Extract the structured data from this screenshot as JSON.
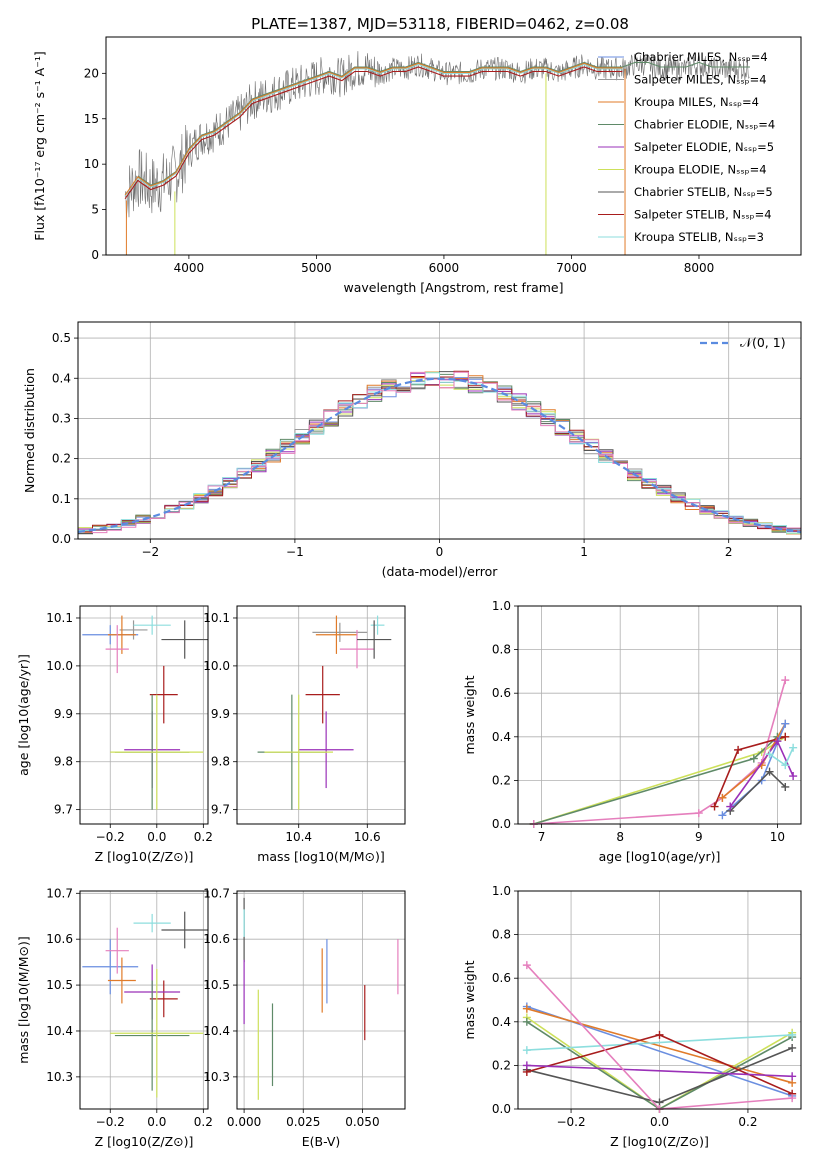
{
  "title": "PLATE=1387, MJD=53118, FIBERID=0462, z=0.08",
  "series_colors": {
    "chabrier_miles": "#6a8ee0",
    "salpeter_miles": "#999999",
    "kroupa_miles": "#e07b2a",
    "chabrier_elodie": "#5f8a68",
    "salpeter_elodie": "#9a30b8",
    "kroupa_elodie": "#cde05a",
    "chabrier_stelib": "#555555",
    "salpeter_stelib": "#a81d1d",
    "kroupa_stelib": "#8ddede",
    "pink": "#e57fbd"
  },
  "chart_data": [
    {
      "id": "spectrum",
      "type": "line",
      "xlabel": "wavelength [Angstrom, rest frame]",
      "ylabel": "Flux [fλ10⁻¹⁷ erg cm⁻² s⁻¹ A⁻¹]",
      "xlim": [
        3350,
        8800
      ],
      "ylim": [
        0,
        24
      ],
      "xticks": [
        4000,
        5000,
        6000,
        7000,
        8000
      ],
      "yticks": [
        0,
        5,
        10,
        15,
        20
      ],
      "legend_position": "top-right",
      "legend": [
        "Chabrier MILES, N_SSP=4",
        "Salpeter MILES, N_SSP=4",
        "Kroupa MILES, N_SSP=4",
        "Chabrier ELODIE, N_SSP=4",
        "Salpeter ELODIE, N_SSP=5",
        "Kroupa ELODIE, N_SSP=4",
        "Chabrier STELIB, N_SSP=5",
        "Salpeter STELIB, N_SSP=4",
        "Kroupa STELIB, N_SSP=3"
      ],
      "data_curve": {
        "x": [
          3500,
          3600,
          3700,
          3800,
          3900,
          4000,
          4100,
          4200,
          4300,
          4400,
          4500,
          4600,
          4700,
          4800,
          4900,
          5000,
          5100,
          5200,
          5300,
          5400,
          5500,
          5600,
          5700,
          5800,
          5900,
          6000,
          6100,
          6200,
          6300,
          6400,
          6500,
          6600,
          6700,
          6800,
          6900,
          7000,
          7100,
          7200,
          7300,
          7400,
          7500,
          7600,
          7700,
          7800,
          7900,
          8000,
          8100,
          8200,
          8300,
          8400
        ],
        "y": [
          6.5,
          8.5,
          7.5,
          8.0,
          9.0,
          11.5,
          13.0,
          13.5,
          14.5,
          15.5,
          17.0,
          17.5,
          18.0,
          18.5,
          19.0,
          19.5,
          20.0,
          19.5,
          20.5,
          20.5,
          20.0,
          20.5,
          20.5,
          21.0,
          20.5,
          20.0,
          20.0,
          20.0,
          20.5,
          20.5,
          20.5,
          20.0,
          20.5,
          20.5,
          20.0,
          20.5,
          21.0,
          20.5,
          20.5,
          20.5,
          21.0,
          21.0,
          20.5,
          20.5,
          20.5,
          21.0,
          20.5,
          20.5,
          20.5,
          20.5
        ]
      }
    },
    {
      "id": "residuals",
      "type": "histogram",
      "xlabel": "(data-model)/error",
      "ylabel": "Normed distribution",
      "xlim": [
        -2.5,
        2.5
      ],
      "ylim": [
        0,
        0.54
      ],
      "xticks": [
        -2,
        -1,
        0,
        1,
        2
      ],
      "yticks": [
        0.0,
        0.1,
        0.2,
        0.3,
        0.4,
        0.5
      ],
      "legend": [
        "N(0,1)"
      ],
      "legend_position": "top-right",
      "gaussian": {
        "mean": 0,
        "sigma": 1
      },
      "bin_centers": [
        -2.4,
        -2.2,
        -2.0,
        -1.8,
        -1.6,
        -1.4,
        -1.2,
        -1.0,
        -0.8,
        -0.6,
        -0.4,
        -0.2,
        0.0,
        0.2,
        0.4,
        0.6,
        0.8,
        1.0,
        1.2,
        1.4,
        1.6,
        1.8,
        2.0,
        2.2,
        2.4
      ],
      "bin_values": [
        0.025,
        0.04,
        0.06,
        0.075,
        0.1,
        0.14,
        0.18,
        0.23,
        0.29,
        0.34,
        0.4,
        0.45,
        0.43,
        0.41,
        0.39,
        0.35,
        0.3,
        0.24,
        0.18,
        0.14,
        0.11,
        0.08,
        0.06,
        0.04,
        0.03
      ]
    },
    {
      "id": "age_vs_Z",
      "type": "errorbar",
      "xlabel": "Z [log10(Z/Z⊙)]",
      "ylabel": "age [log10(age/yr)]",
      "xlim": [
        -0.33,
        0.22
      ],
      "ylim": [
        9.67,
        10.125
      ],
      "xticks": [
        -0.2,
        0.0,
        0.2
      ],
      "yticks": [
        9.7,
        9.8,
        9.9,
        10.0,
        10.1
      ],
      "points": [
        {
          "series": "chabrier_miles",
          "x": -0.2,
          "y": 10.065,
          "xerr": 0.12,
          "yerr": 0.02
        },
        {
          "series": "salpeter_miles",
          "x": -0.1,
          "y": 10.075,
          "xerr": 0.06,
          "yerr": 0.02
        },
        {
          "series": "kroupa_miles",
          "x": -0.15,
          "y": 10.065,
          "xerr": 0.06,
          "yerr": 0.04
        },
        {
          "series": "pink",
          "x": -0.17,
          "y": 10.035,
          "xerr": 0.05,
          "yerr": 0.05
        },
        {
          "series": "kroupa_stelib",
          "x": -0.02,
          "y": 10.085,
          "xerr": 0.08,
          "yerr": 0.02
        },
        {
          "series": "chabrier_stelib",
          "x": 0.12,
          "y": 10.055,
          "xerr": 0.1,
          "yerr": 0.04
        },
        {
          "series": "salpeter_stelib",
          "x": 0.03,
          "y": 9.94,
          "xerr": 0.06,
          "yerr": 0.06
        },
        {
          "series": "salpeter_elodie",
          "x": -0.02,
          "y": 9.825,
          "xerr": 0.12,
          "yerr": 0.08
        },
        {
          "series": "chabrier_elodie",
          "x": -0.02,
          "y": 9.82,
          "xerr": 0.16,
          "yerr": 0.12
        },
        {
          "series": "kroupa_elodie",
          "x": 0.0,
          "y": 9.82,
          "xerr": 0.2,
          "yerr": 0.12
        }
      ]
    },
    {
      "id": "age_vs_mass",
      "type": "errorbar",
      "xlabel": "mass [log10(M/M⊙)]",
      "ylabel": "",
      "xlim": [
        10.22,
        10.71
      ],
      "ylim": [
        9.67,
        10.125
      ],
      "xticks": [
        10.4,
        10.6
      ],
      "yticks": [
        9.7,
        9.8,
        9.9,
        10.0,
        10.1
      ],
      "points": [
        {
          "series": "salpeter_miles",
          "x": 10.52,
          "y": 10.07,
          "xerr": 0.08,
          "yerr": 0.02
        },
        {
          "series": "kroupa_miles",
          "x": 10.51,
          "y": 10.065,
          "xerr": 0.06,
          "yerr": 0.04
        },
        {
          "series": "pink",
          "x": 10.57,
          "y": 10.035,
          "xerr": 0.05,
          "yerr": 0.04
        },
        {
          "series": "kroupa_stelib",
          "x": 10.63,
          "y": 10.085,
          "xerr": 0.02,
          "yerr": 0.02
        },
        {
          "series": "chabrier_stelib",
          "x": 10.62,
          "y": 10.055,
          "xerr": 0.05,
          "yerr": 0.04
        },
        {
          "series": "salpeter_stelib",
          "x": 10.47,
          "y": 9.94,
          "xerr": 0.05,
          "yerr": 0.06
        },
        {
          "series": "salpeter_elodie",
          "x": 10.48,
          "y": 9.825,
          "xerr": 0.08,
          "yerr": 0.08
        },
        {
          "series": "chabrier_elodie",
          "x": 10.38,
          "y": 9.82,
          "xerr": 0.1,
          "yerr": 0.12
        },
        {
          "series": "kroupa_elodie",
          "x": 10.4,
          "y": 9.82,
          "xerr": 0.1,
          "yerr": 0.12
        }
      ]
    },
    {
      "id": "weight_vs_age",
      "type": "line",
      "xlabel": "age [log10(age/yr)]",
      "ylabel": "mass weight",
      "xlim": [
        6.7,
        10.3
      ],
      "ylim": [
        0,
        1.0
      ],
      "xticks": [
        7,
        8,
        9,
        10
      ],
      "yticks": [
        0.0,
        0.2,
        0.4,
        0.6,
        0.8,
        1.0
      ],
      "series": [
        {
          "color": "kroupa_elodie",
          "x": [
            6.9,
            9.8,
            10.1
          ],
          "y": [
            0.0,
            0.33,
            0.4
          ]
        },
        {
          "color": "chabrier_elodie",
          "x": [
            6.9,
            9.7,
            10.0
          ],
          "y": [
            0.0,
            0.3,
            0.4
          ]
        },
        {
          "color": "pink",
          "x": [
            6.9,
            9.0,
            9.3,
            9.8,
            10.1
          ],
          "y": [
            0.0,
            0.05,
            0.12,
            0.28,
            0.66
          ]
        },
        {
          "color": "salpeter_stelib",
          "x": [
            9.2,
            9.5,
            10.1
          ],
          "y": [
            0.08,
            0.34,
            0.4
          ]
        },
        {
          "color": "kroupa_miles",
          "x": [
            9.3,
            9.8,
            10.1
          ],
          "y": [
            0.12,
            0.27,
            0.46
          ]
        },
        {
          "color": "chabrier_miles",
          "x": [
            9.3,
            9.8,
            10.1
          ],
          "y": [
            0.04,
            0.2,
            0.46
          ]
        },
        {
          "color": "chabrier_stelib",
          "x": [
            9.4,
            9.9,
            10.1
          ],
          "y": [
            0.06,
            0.24,
            0.17
          ]
        },
        {
          "color": "salpeter_elodie",
          "x": [
            9.4,
            10.0,
            10.2
          ],
          "y": [
            0.08,
            0.38,
            0.22
          ]
        },
        {
          "color": "kroupa_stelib",
          "x": [
            9.9,
            10.1,
            10.2
          ],
          "y": [
            0.32,
            0.27,
            0.35
          ]
        }
      ]
    },
    {
      "id": "mass_vs_Z",
      "type": "errorbar",
      "xlabel": "Z [log10(Z/Z⊙)]",
      "ylabel": "mass [log10(M/M⊙)]",
      "xlim": [
        -0.33,
        0.22
      ],
      "ylim": [
        10.23,
        10.705
      ],
      "xticks": [
        -0.2,
        0.0,
        0.2
      ],
      "yticks": [
        10.3,
        10.4,
        10.5,
        10.6,
        10.7
      ],
      "points": [
        {
          "series": "chabrier_miles",
          "x": -0.2,
          "y": 10.54,
          "xerr": 0.12,
          "yerr": 0.06
        },
        {
          "series": "kroupa_miles",
          "x": -0.15,
          "y": 10.51,
          "xerr": 0.06,
          "yerr": 0.05
        },
        {
          "series": "pink",
          "x": -0.17,
          "y": 10.575,
          "xerr": 0.05,
          "yerr": 0.05
        },
        {
          "series": "kroupa_stelib",
          "x": -0.02,
          "y": 10.635,
          "xerr": 0.08,
          "yerr": 0.02
        },
        {
          "series": "chabrier_stelib",
          "x": 0.12,
          "y": 10.62,
          "xerr": 0.1,
          "yerr": 0.04
        },
        {
          "series": "salpeter_stelib",
          "x": 0.03,
          "y": 10.47,
          "xerr": 0.06,
          "yerr": 0.04
        },
        {
          "series": "salpeter_elodie",
          "x": -0.02,
          "y": 10.485,
          "xerr": 0.12,
          "yerr": 0.06
        },
        {
          "series": "chabrier_elodie",
          "x": -0.02,
          "y": 10.39,
          "xerr": 0.16,
          "yerr": 0.12
        },
        {
          "series": "kroupa_elodie",
          "x": 0.0,
          "y": 10.395,
          "xerr": 0.2,
          "yerr": 0.14
        }
      ]
    },
    {
      "id": "mass_vs_ebv",
      "type": "errorbar",
      "xlabel": "E(B-V)",
      "ylabel": "",
      "xlim": [
        -0.003,
        0.068
      ],
      "ylim": [
        10.23,
        10.705
      ],
      "xticks": [
        0.0,
        0.025,
        0.05
      ],
      "yticks": [
        10.3,
        10.4,
        10.5,
        10.6,
        10.7
      ],
      "points": [
        {
          "series": "chabrier_stelib",
          "x": 0.0,
          "y": 10.62,
          "xerr": 0,
          "yerr": 0.07
        },
        {
          "series": "kroupa_stelib",
          "x": 0.0,
          "y": 10.635,
          "xerr": 0,
          "yerr": 0.03
        },
        {
          "series": "salpeter_elodie",
          "x": 0.0,
          "y": 10.485,
          "xerr": 0,
          "yerr": 0.07
        },
        {
          "series": "kroupa_elodie",
          "x": 0.006,
          "y": 10.37,
          "xerr": 0,
          "yerr": 0.12
        },
        {
          "series": "chabrier_elodie",
          "x": 0.012,
          "y": 10.37,
          "xerr": 0,
          "yerr": 0.09
        },
        {
          "series": "kroupa_miles",
          "x": 0.033,
          "y": 10.51,
          "xerr": 0,
          "yerr": 0.07
        },
        {
          "series": "chabrier_miles",
          "x": 0.035,
          "y": 10.53,
          "xerr": 0,
          "yerr": 0.07
        },
        {
          "series": "salpeter_stelib",
          "x": 0.051,
          "y": 10.44,
          "xerr": 0,
          "yerr": 0.06
        },
        {
          "series": "pink",
          "x": 0.065,
          "y": 10.54,
          "xerr": 0,
          "yerr": 0.06
        }
      ]
    },
    {
      "id": "weight_vs_Z",
      "type": "line",
      "xlabel": "Z [log10(Z/Z⊙)]",
      "ylabel": "mass weight",
      "xlim": [
        -0.32,
        0.32
      ],
      "ylim": [
        0,
        1.0
      ],
      "xticks": [
        -0.2,
        0.0,
        0.2
      ],
      "yticks": [
        0.0,
        0.2,
        0.4,
        0.6,
        0.8,
        1.0
      ],
      "series": [
        {
          "color": "chabrier_miles",
          "x": [
            -0.3,
            0.3
          ],
          "y": [
            0.47,
            0.06
          ]
        },
        {
          "color": "kroupa_miles",
          "x": [
            -0.3,
            0.3
          ],
          "y": [
            0.46,
            0.12
          ]
        },
        {
          "color": "kroupa_elodie",
          "x": [
            -0.3,
            0.0,
            0.3
          ],
          "y": [
            0.42,
            0.0,
            0.35
          ]
        },
        {
          "color": "chabrier_elodie",
          "x": [
            -0.3,
            0.0,
            0.3
          ],
          "y": [
            0.4,
            0.0,
            0.33
          ]
        },
        {
          "color": "kroupa_stelib",
          "x": [
            -0.3,
            0.3
          ],
          "y": [
            0.27,
            0.34
          ]
        },
        {
          "color": "chabrier_stelib",
          "x": [
            -0.3,
            0.0,
            0.3
          ],
          "y": [
            0.18,
            0.03,
            0.28
          ]
        },
        {
          "color": "salpeter_stelib",
          "x": [
            -0.3,
            0.0,
            0.3
          ],
          "y": [
            0.17,
            0.34,
            0.07
          ]
        },
        {
          "color": "salpeter_elodie",
          "x": [
            -0.3,
            0.3
          ],
          "y": [
            0.2,
            0.15
          ]
        },
        {
          "color": "pink",
          "x": [
            -0.3,
            0.0,
            0.3
          ],
          "y": [
            0.66,
            0.0,
            0.05
          ]
        }
      ]
    }
  ]
}
